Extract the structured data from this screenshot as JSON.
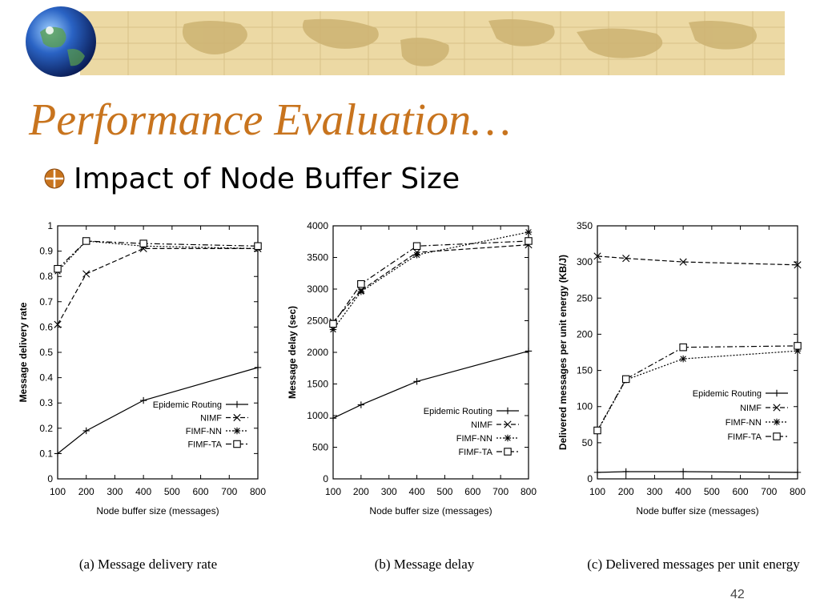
{
  "slide": {
    "title": "Performance Evaluation…",
    "bullet": "Impact of Node Buffer Size",
    "slide_number": "42",
    "colors": {
      "title": "#c8741e",
      "banner": "#ecd9a4",
      "bullet_icon": "#c8741e"
    },
    "icons": {
      "banner_globe": "globe-icon",
      "bullet": "globe-bullet-icon"
    }
  },
  "chart_data": [
    {
      "type": "line",
      "caption": "(a) Message delivery rate",
      "xlabel": "Node buffer size (messages)",
      "ylabel": "Message delivery rate",
      "xlim": [
        100,
        800
      ],
      "ylim": [
        0,
        1
      ],
      "xticks": [
        "100",
        "200",
        "300",
        "400",
        "500",
        "600",
        "700",
        "800"
      ],
      "yticks": [
        "0",
        "0.1",
        "0.2",
        "0.3",
        "0.4",
        "0.5",
        "0.6",
        "0.7",
        "0.8",
        "0.9",
        "1"
      ],
      "legend": "bottom-right",
      "series": [
        {
          "name": "Epidemic Routing",
          "x": [
            100,
            200,
            400,
            800
          ],
          "y": [
            0.1,
            0.19,
            0.31,
            0.44
          ],
          "marker": "plus",
          "dash": "solid"
        },
        {
          "name": "NIMF",
          "x": [
            100,
            200,
            400,
            800
          ],
          "y": [
            0.61,
            0.81,
            0.91,
            0.91
          ],
          "marker": "cross",
          "dash": "dashed"
        },
        {
          "name": "FIMF-NN",
          "x": [
            100,
            200,
            400,
            800
          ],
          "y": [
            0.82,
            0.94,
            0.92,
            0.91
          ],
          "marker": "star",
          "dash": "dotted"
        },
        {
          "name": "FIMF-TA",
          "x": [
            100,
            200,
            400,
            800
          ],
          "y": [
            0.83,
            0.94,
            0.93,
            0.92
          ],
          "marker": "square",
          "dash": "dashdot"
        }
      ]
    },
    {
      "type": "line",
      "caption": "(b) Message delay",
      "xlabel": "Node buffer size (messages)",
      "ylabel": "Message delay (sec)",
      "xlim": [
        100,
        800
      ],
      "ylim": [
        0,
        4000
      ],
      "xticks": [
        "100",
        "200",
        "300",
        "400",
        "500",
        "600",
        "700",
        "800"
      ],
      "yticks": [
        "0",
        "500",
        "1000",
        "1500",
        "2000",
        "2500",
        "3000",
        "3500",
        "4000"
      ],
      "legend": "bottom-right",
      "series": [
        {
          "name": "Epidemic Routing",
          "x": [
            100,
            200,
            400,
            800
          ],
          "y": [
            960,
            1170,
            1540,
            2020
          ],
          "marker": "plus",
          "dash": "solid"
        },
        {
          "name": "NIMF",
          "x": [
            100,
            200,
            400,
            800
          ],
          "y": [
            2480,
            2980,
            3580,
            3700
          ],
          "marker": "cross",
          "dash": "dashed"
        },
        {
          "name": "FIMF-NN",
          "x": [
            100,
            200,
            400,
            800
          ],
          "y": [
            2360,
            2960,
            3540,
            3900
          ],
          "marker": "star",
          "dash": "dotted"
        },
        {
          "name": "FIMF-TA",
          "x": [
            100,
            200,
            400,
            800
          ],
          "y": [
            2450,
            3080,
            3680,
            3760
          ],
          "marker": "square",
          "dash": "dashdot"
        }
      ]
    },
    {
      "type": "line",
      "caption": "(c) Delivered messages per unit energy",
      "xlabel": "Node buffer size (messages)",
      "ylabel": "Delivered messages per unit energy (KB/J)",
      "xlim": [
        100,
        800
      ],
      "ylim": [
        0,
        350
      ],
      "xticks": [
        "100",
        "200",
        "300",
        "400",
        "500",
        "600",
        "700",
        "800"
      ],
      "yticks": [
        "0",
        "50",
        "100",
        "150",
        "200",
        "250",
        "300",
        "350"
      ],
      "legend": "middle-right",
      "series": [
        {
          "name": "Epidemic Routing",
          "x": [
            100,
            200,
            400,
            800
          ],
          "y": [
            9,
            10,
            10,
            9
          ],
          "marker": "plus",
          "dash": "solid"
        },
        {
          "name": "NIMF",
          "x": [
            100,
            200,
            400,
            800
          ],
          "y": [
            308,
            305,
            300,
            296
          ],
          "marker": "cross",
          "dash": "dashed"
        },
        {
          "name": "FIMF-NN",
          "x": [
            100,
            200,
            400,
            800
          ],
          "y": [
            66,
            137,
            166,
            177
          ],
          "marker": "star",
          "dash": "dotted"
        },
        {
          "name": "FIMF-TA",
          "x": [
            100,
            200,
            400,
            800
          ],
          "y": [
            67,
            138,
            182,
            184
          ],
          "marker": "square",
          "dash": "dashdot"
        }
      ]
    }
  ]
}
